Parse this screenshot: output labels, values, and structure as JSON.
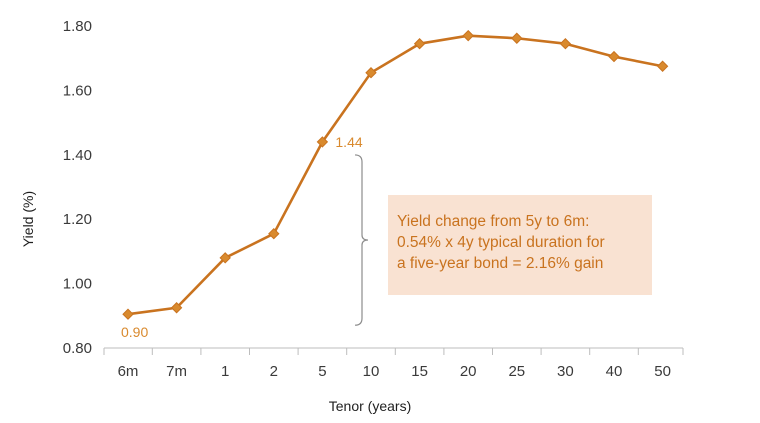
{
  "chart_data": {
    "type": "line",
    "title": "",
    "xlabel": "Tenor (years)",
    "ylabel": "Yield (%)",
    "categories": [
      "6m",
      "7m",
      "1",
      "2",
      "5",
      "10",
      "15",
      "20",
      "25",
      "30",
      "40",
      "50"
    ],
    "series": [
      {
        "values": [
          0.905,
          0.925,
          1.08,
          1.155,
          1.44,
          1.655,
          1.745,
          1.77,
          1.762,
          1.745,
          1.705,
          1.675
        ]
      }
    ],
    "ylim": [
      0.8,
      1.8
    ],
    "yticks": [
      0.8,
      1.0,
      1.2,
      1.4,
      1.6,
      1.8
    ],
    "ytick_labels": [
      "0.80",
      "1.00",
      "1.20",
      "1.40",
      "1.60",
      "1.80"
    ],
    "grid": false,
    "data_labels": [
      {
        "category": "6m",
        "text": "0.90"
      },
      {
        "category": "5",
        "text": "1.44"
      }
    ],
    "annotation": {
      "lines": [
        "Yield change from 5y to 6m:",
        "0.54% x 4y typical duration for",
        "a five-year bond = 2.16% gain"
      ]
    },
    "colors": {
      "line": "#c9731f",
      "marker": "#d98a2e",
      "data_label": "#d98a2e",
      "annotation_bg": "#f9e2d2",
      "annotation_text": "#c9731f",
      "axis": "#bdbdbd",
      "bracket": "#8c8c8c"
    }
  }
}
